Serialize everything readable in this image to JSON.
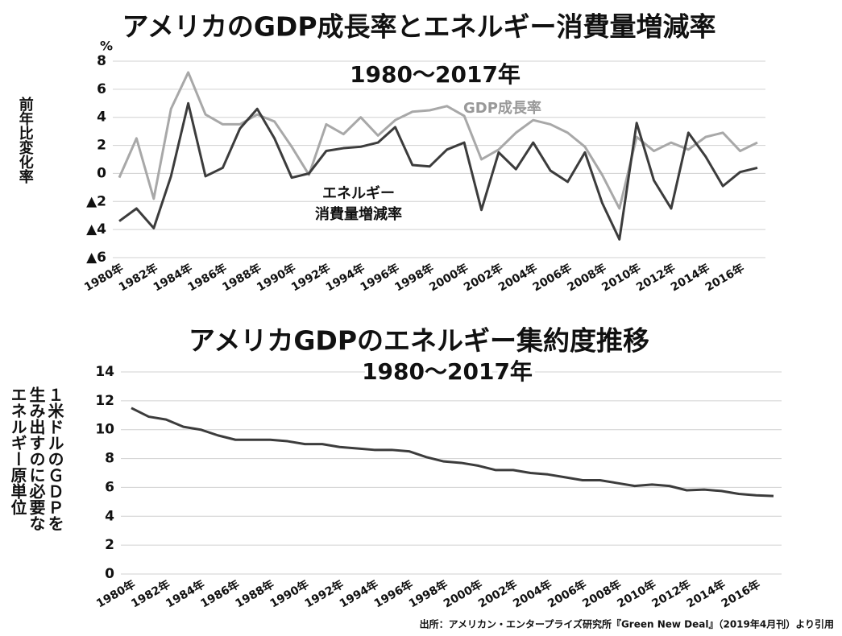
{
  "chart_data": [
    {
      "type": "line",
      "title": "アメリカのGDP成長率とエネルギー消費量増減率",
      "subtitle": "1980～2017年",
      "unit": "%",
      "y_label": "前年比変化率",
      "categories": [
        "1980年",
        null,
        "1982年",
        null,
        "1984年",
        null,
        "1986年",
        null,
        "1988年",
        null,
        "1990年",
        null,
        "1992年",
        null,
        "1994年",
        null,
        "1996年",
        null,
        "1998年",
        null,
        "2000年",
        null,
        "2002年",
        null,
        "2004年",
        null,
        "2006年",
        null,
        "2008年",
        null,
        "2010年",
        null,
        "2012年",
        null,
        "2014年",
        null,
        "2016年",
        null
      ],
      "series": [
        {
          "name": "GDP成長率",
          "color": "#a8a8a8",
          "values": [
            -0.3,
            2.5,
            -1.8,
            4.6,
            7.2,
            4.2,
            3.5,
            3.5,
            4.2,
            3.7,
            1.9,
            -0.1,
            3.5,
            2.8,
            4.0,
            2.7,
            3.8,
            4.4,
            4.5,
            4.8,
            4.1,
            1.0,
            1.7,
            2.9,
            3.8,
            3.5,
            2.9,
            1.9,
            -0.1,
            -2.5,
            2.6,
            1.6,
            2.2,
            1.7,
            2.6,
            2.9,
            1.6,
            2.2
          ]
        },
        {
          "name": "エネルギー\n消費量増減率",
          "color": "#3c3c3c",
          "values": [
            -3.4,
            -2.5,
            -3.9,
            -0.2,
            5.0,
            -0.2,
            0.4,
            3.2,
            4.6,
            2.5,
            -0.3,
            0.0,
            1.6,
            1.8,
            1.9,
            2.2,
            3.3,
            0.6,
            0.5,
            1.7,
            2.2,
            -2.6,
            1.5,
            0.3,
            2.2,
            0.2,
            -0.6,
            1.5,
            -2.1,
            -4.7,
            3.6,
            -0.5,
            -2.5,
            2.9,
            1.2,
            -0.9,
            0.1,
            0.4
          ]
        }
      ],
      "ylim": [
        -6,
        8
      ],
      "yticks": [
        8,
        6,
        4,
        2,
        0,
        {
          "value": -2,
          "label": "▲2"
        },
        {
          "value": -4,
          "label": "▲4"
        },
        {
          "value": -6,
          "label": "▲6"
        }
      ],
      "grid": true
    },
    {
      "type": "line",
      "title": "アメリカGDPのエネルギー集約度推移",
      "subtitle": "1980～2017年",
      "y_label": "１米ドルのＧＤＰを\n生み出すのに必要な\nエネルギー原単位",
      "categories": [
        "1980年",
        null,
        "1982年",
        null,
        "1984年",
        null,
        "1986年",
        null,
        "1988年",
        null,
        "1990年",
        null,
        "1992年",
        null,
        "1994年",
        null,
        "1996年",
        null,
        "1998年",
        null,
        "2000年",
        null,
        "2002年",
        null,
        "2004年",
        null,
        "2006年",
        null,
        "2008年",
        null,
        "2010年",
        null,
        "2012年",
        null,
        "2014年",
        null,
        "2016年",
        null
      ],
      "color": "#3c3c3c",
      "values": [
        11.5,
        10.9,
        10.7,
        10.2,
        10.0,
        9.6,
        9.3,
        9.3,
        9.3,
        9.2,
        9.0,
        9.0,
        8.8,
        8.7,
        8.6,
        8.6,
        8.5,
        8.1,
        7.8,
        7.7,
        7.5,
        7.2,
        7.2,
        7.0,
        6.9,
        6.7,
        6.5,
        6.5,
        6.3,
        6.1,
        6.2,
        6.1,
        5.8,
        5.85,
        5.75,
        5.55,
        5.45,
        5.4
      ],
      "ylim": [
        0,
        14
      ],
      "yticks": [
        0,
        2,
        4,
        6,
        8,
        10,
        12,
        14
      ],
      "grid": true
    }
  ],
  "source": "出所：アメリカン・エンタープライズ研究所『Green New Deal』（2019年4月刊）より引用"
}
